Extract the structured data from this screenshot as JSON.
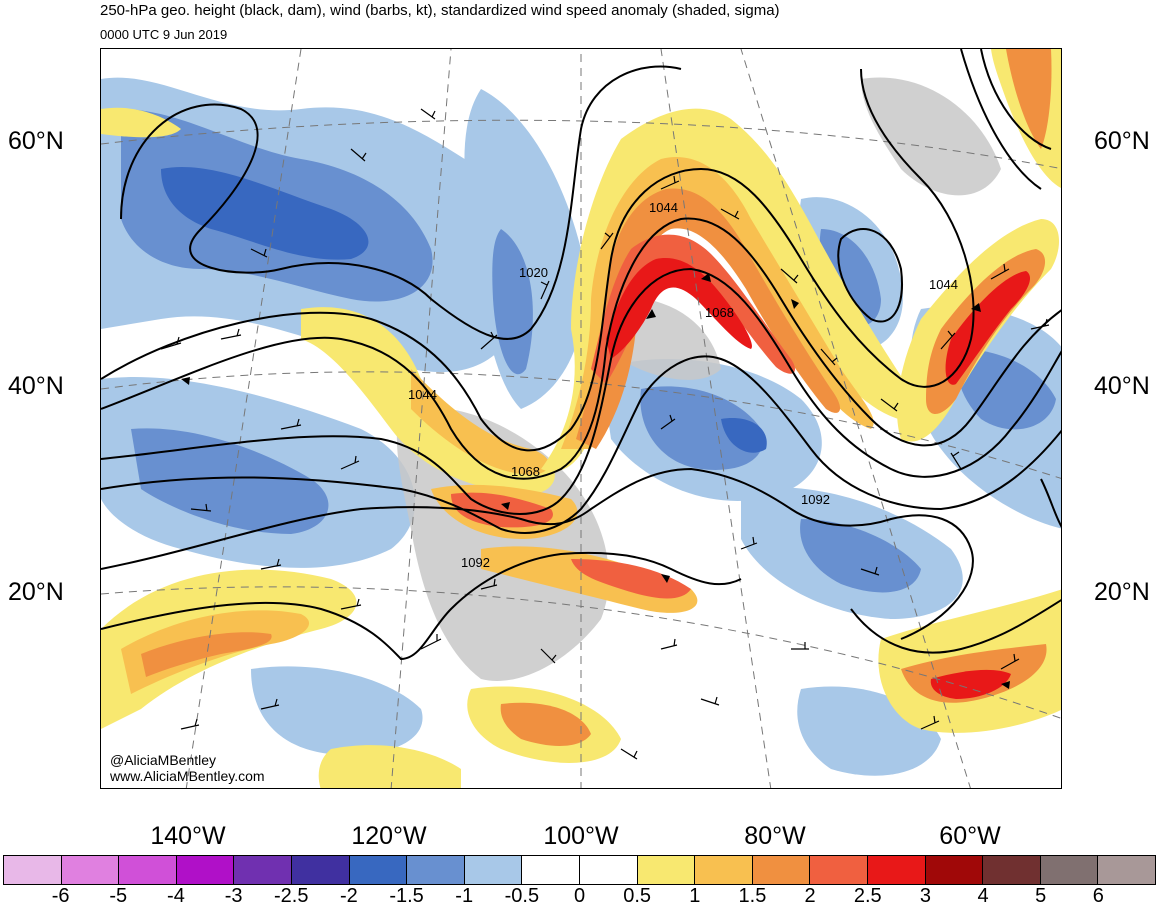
{
  "title": "250-hPa geo. height (black, dam), wind (barbs, kt), standardized wind speed anomaly (shaded, sigma)",
  "subtitle": "0000 UTC 9 Jun 2019",
  "latitudes": [
    "60°N",
    "40°N",
    "20°N"
  ],
  "longitudes": [
    "140°W",
    "120°W",
    "100°W",
    "80°W",
    "60°W"
  ],
  "contour_labels": [
    "1020",
    "1044",
    "1068",
    "1044",
    "1068",
    "1092",
    "1092",
    "1044"
  ],
  "credits": [
    "@AliciaMBentley",
    "www.AliciaMBentley.com"
  ],
  "colorbar": {
    "labels": [
      "-6",
      "-5",
      "-4",
      "-3",
      "-2.5",
      "-2",
      "-1.5",
      "-1",
      "-0.5",
      "0",
      "0.5",
      "1",
      "1.5",
      "2",
      "2.5",
      "3",
      "4",
      "5",
      "6"
    ],
    "colors": [
      "#e8b8e8",
      "#e080e0",
      "#d050d8",
      "#b010c8",
      "#7030b0",
      "#4030a0",
      "#3868c0",
      "#6890d0",
      "#a8c8e8",
      "#ffffff",
      "#ffffff",
      "#f8e870",
      "#f8c050",
      "#f09040",
      "#f06040",
      "#e81818",
      "#a00808",
      "#703030",
      "#807070",
      "#a89898"
    ]
  },
  "palette": {
    "neg1": "#a8c8e8",
    "neg2": "#6890d0",
    "neg3": "#3868c0",
    "pos1": "#f8e870",
    "pos2": "#f8c050",
    "pos3": "#f09040",
    "pos4": "#f06040",
    "pos5": "#e81818",
    "land": "#c8c8c8"
  }
}
